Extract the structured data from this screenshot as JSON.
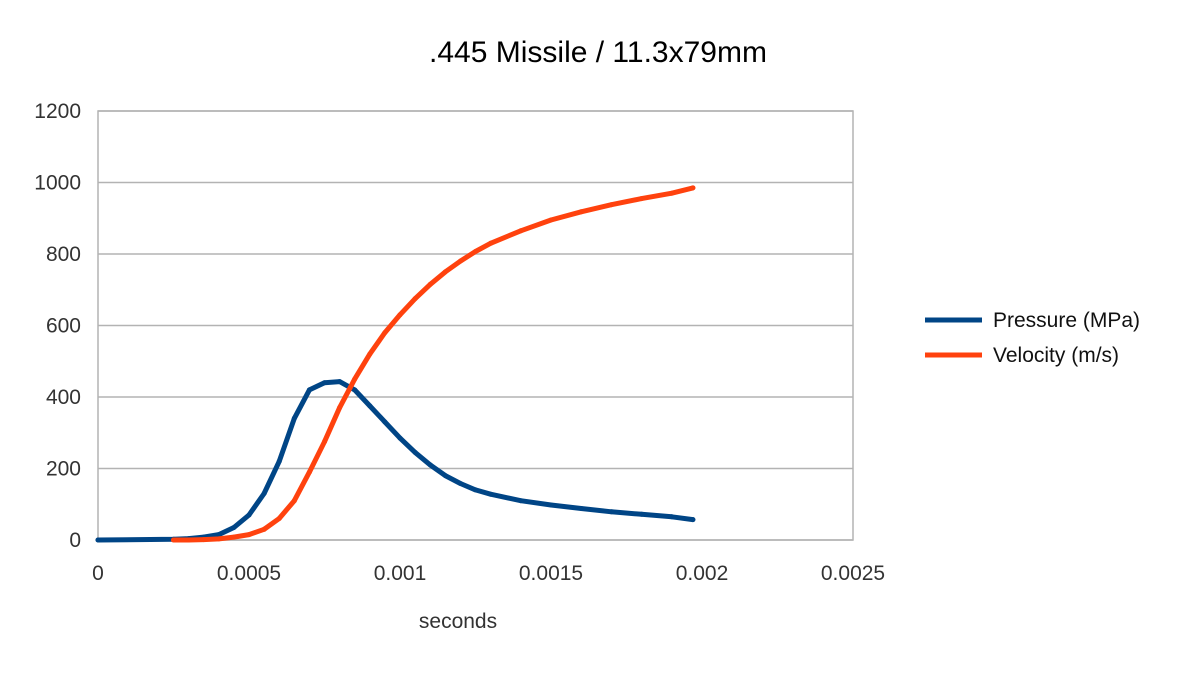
{
  "chart_data": {
    "type": "line",
    "title": ".445 Missile / 11.3x79mm",
    "xlabel": "seconds",
    "ylabel": "",
    "xlim": [
      0,
      0.0025
    ],
    "ylim": [
      0,
      1200
    ],
    "x_ticks": [
      "0",
      "0.0005",
      "0.001",
      "0.0015",
      "0.002",
      "0.0025"
    ],
    "y_ticks": [
      "0",
      "200",
      "400",
      "600",
      "800",
      "1000",
      "1200"
    ],
    "grid": "horizontal",
    "legend_position": "right",
    "series": [
      {
        "name": "Pressure (MPa)",
        "color": "#004586",
        "x": [
          0,
          0.00025,
          0.0003,
          0.00035,
          0.0004,
          0.00045,
          0.0005,
          0.00055,
          0.0006,
          0.00065,
          0.0007,
          0.00075,
          0.0008,
          0.00085,
          0.0009,
          0.00095,
          0.001,
          0.00105,
          0.0011,
          0.00115,
          0.0012,
          0.00125,
          0.0013,
          0.0014,
          0.0015,
          0.0016,
          0.0017,
          0.0018,
          0.0019,
          0.00197
        ],
        "values": [
          0,
          2,
          4,
          8,
          15,
          35,
          70,
          130,
          220,
          340,
          420,
          440,
          443,
          420,
          375,
          330,
          285,
          245,
          210,
          180,
          158,
          140,
          128,
          110,
          98,
          88,
          79,
          72,
          65,
          57
        ]
      },
      {
        "name": "Velocity (m/s)",
        "color": "#ff420e",
        "x": [
          0.00025,
          0.0003,
          0.00035,
          0.0004,
          0.00045,
          0.0005,
          0.00055,
          0.0006,
          0.00065,
          0.0007,
          0.00075,
          0.0008,
          0.00085,
          0.0009,
          0.00095,
          0.001,
          0.00105,
          0.0011,
          0.00115,
          0.0012,
          0.00125,
          0.0013,
          0.0014,
          0.0015,
          0.0016,
          0.0017,
          0.0018,
          0.0019,
          0.00197
        ],
        "values": [
          0,
          0,
          1,
          3,
          8,
          15,
          30,
          60,
          110,
          190,
          275,
          370,
          450,
          520,
          580,
          630,
          675,
          715,
          750,
          780,
          807,
          830,
          865,
          895,
          918,
          938,
          955,
          970,
          985
        ]
      }
    ]
  }
}
